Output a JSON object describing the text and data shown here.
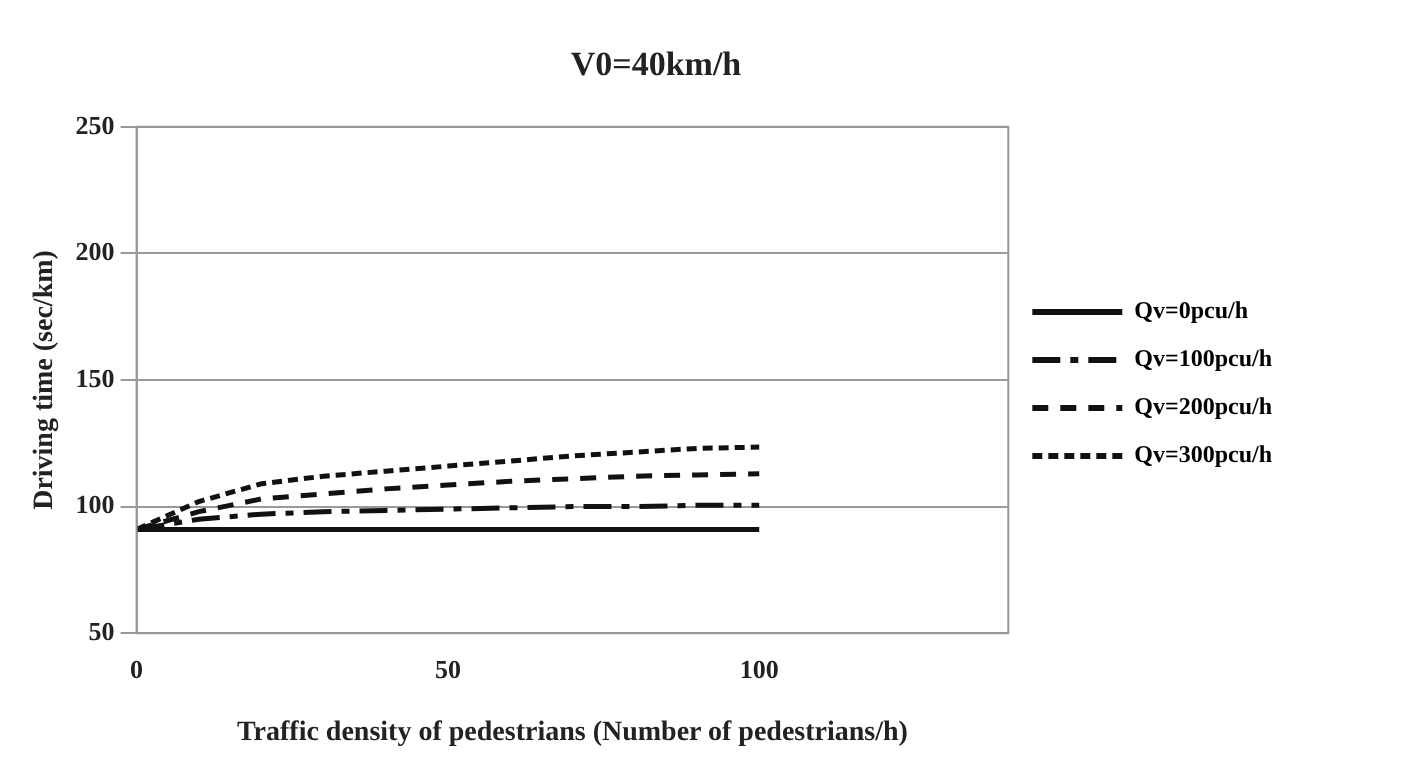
{
  "chart_data": {
    "type": "line",
    "title": "V0=40km/h",
    "xlabel": "Traffic density of pedestrians (Number of pedestrians/h)",
    "ylabel": "Driving time (sec/km)",
    "x": [
      0,
      10,
      20,
      30,
      40,
      50,
      60,
      70,
      80,
      90,
      100
    ],
    "xlim": [
      0,
      140
    ],
    "xticks": [
      0,
      50,
      100
    ],
    "ylim": [
      50,
      250
    ],
    "yticks": [
      50,
      100,
      150,
      200,
      250
    ],
    "grid": "y",
    "legend": "right",
    "marker": "none",
    "series": [
      {
        "name": "Qv=0pcu/h",
        "color": "#111111",
        "line_style": "solid",
        "values": [
          91,
          91,
          91,
          91,
          91,
          91,
          91,
          91,
          91,
          91,
          91
        ]
      },
      {
        "name": "Qv=100pcu/h",
        "color": "#111111",
        "line_style": "longdash",
        "values": [
          91,
          95,
          97,
          98,
          98.5,
          99,
          99.5,
          100,
          100,
          100.5,
          100.5
        ]
      },
      {
        "name": "Qv=200pcu/h",
        "color": "#111111",
        "line_style": "dashed",
        "values": [
          91,
          98,
          103,
          105,
          107,
          108.5,
          110,
          111,
          112,
          112.5,
          113
        ]
      },
      {
        "name": "Qv=300pcu/h",
        "color": "#111111",
        "line_style": "dotted",
        "values": [
          91,
          102,
          109,
          112,
          114,
          116,
          118,
          120,
          121.5,
          123,
          123.5
        ]
      }
    ]
  }
}
